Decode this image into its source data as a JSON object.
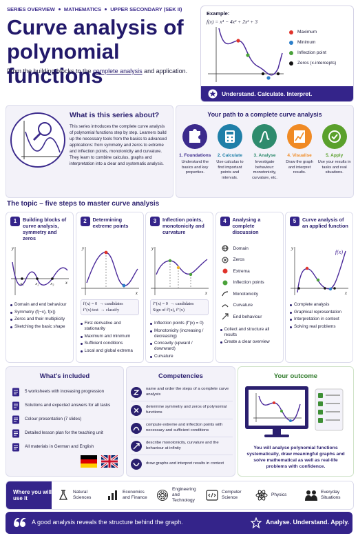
{
  "header": {
    "breadcrumb": [
      "SERIES OVERVIEW",
      "MATHEMATICS",
      "UPPER SECONDARY (SEK II)"
    ],
    "title": "Curve analysis of polynomial functions",
    "subtitle": [
      "From the building blocks to the ",
      "complete analysis",
      " and application."
    ]
  },
  "example": {
    "label": "Example:",
    "formula": "f(x) = x⁴ − 4x³ + 2x² + 3",
    "legend": [
      "Maximum",
      "Minimum",
      "Inflection point",
      "Zeros (x-intercepts)"
    ],
    "banner": "Understand. Calculate. Interpret."
  },
  "about": {
    "title": "What is this series about?",
    "text": "This series introduces the complete curve analysis of polynomial functions step by step. Learners build up the necessary tools from the basics to advanced applications: from symmetry and zeros to extreme and inflection points, monotonicity and curvature. They learn to combine calculus, graphs and interpretation into a clear and systematic analysis."
  },
  "path": {
    "title": "Your path to a complete curve analysis",
    "steps": [
      {
        "title": "1. Foundations",
        "text": "Understand the basics and key properties."
      },
      {
        "title": "2. Calculate",
        "text": "Use calculus to find important points and intervals."
      },
      {
        "title": "3. Analyse",
        "text": "Investigate behaviour: monotonicity, curvature, etc."
      },
      {
        "title": "4. Visualise",
        "text": "Draw the graph and interpret results."
      },
      {
        "title": "5. Apply",
        "text": "Use your results in tasks and real situations."
      }
    ]
  },
  "topic": {
    "heading": "The topic – five steps to master curve analysis",
    "axis_x": "x",
    "axis_y": "y",
    "cards": [
      {
        "number": "1",
        "title": "Building blocks of curve analysis, symmetry and zeros",
        "graph_labels": [
          "x₁",
          "x₂",
          "x₃"
        ],
        "bullets": [
          "Domain and end behaviour",
          "Symmetry (f(−x), f(x))",
          "Zeros and their multiplicity",
          "Sketching the basic shape"
        ]
      },
      {
        "number": "2",
        "title": "Determining extreme points",
        "box": [
          "f′(x) = 0  → candidates",
          "f″(x) test  → classify"
        ],
        "bullets": [
          "First derivative and stationarity",
          "Maximum and minimum",
          "Sufficient conditions",
          "Local and global extrema"
        ]
      },
      {
        "number": "3",
        "title": "Inflection points, monotonicity and curvature",
        "box": [
          "f″(x) = 0  → candidates",
          "Sign of f′(x), f″(x)"
        ],
        "bullets": [
          "Inflection points (f″(x) = 0)",
          "Monotonicity (increasing / decreasing)",
          "Concavity (upward / downward)",
          "Curvature"
        ]
      },
      {
        "number": "4",
        "title": "Analysing a complete discussion",
        "list": [
          "Domain",
          "Zeros",
          "Extrema",
          "Inflection points",
          "Monotonicity",
          "Curvature",
          "End behaviour"
        ],
        "bullets": [
          "Collect and structure all results",
          "Create a clear overview"
        ]
      },
      {
        "number": "5",
        "title": "Curve analysis of an applied function",
        "graph_labels": [
          "f(x)"
        ],
        "bullets": [
          "Complete analysis",
          "Graphical representation",
          "Interpretation in context",
          "Solving real problems"
        ]
      }
    ]
  },
  "included": {
    "title": "What's included",
    "items": [
      "5 worksheets with increasing progression",
      "Solutions and expected answers for all tasks",
      "Colour presentation (7 slides)",
      "Detailed lesson plan for the teaching unit",
      "All materials in German and English"
    ]
  },
  "competencies": {
    "title": "Competencies",
    "items": [
      "name and order the steps of a complete curve analysis",
      "determine symmetry and zeros of polynomial functions",
      "compute extreme and inflection points with necessary and sufficient conditions",
      "describe monotonicity, curvature and the behaviour at infinity",
      "draw graphs and interpret results in context"
    ]
  },
  "outcome": {
    "title": "Your outcome",
    "text": "You will analyse polynomial functions systematically, draw meaningful graphs and solve mathematical as well as real-life problems with confidence."
  },
  "use": {
    "label": "Where you will use it",
    "items": [
      "Natural Sciences",
      "Economics and Finance",
      "Engineering and Technology",
      "Computer Science",
      "Physics",
      "Everyday Situations"
    ]
  },
  "footer": {
    "quote": "A good analysis reveals the structure behind the graph.",
    "motto": "Analyse. Understand. Apply."
  }
}
